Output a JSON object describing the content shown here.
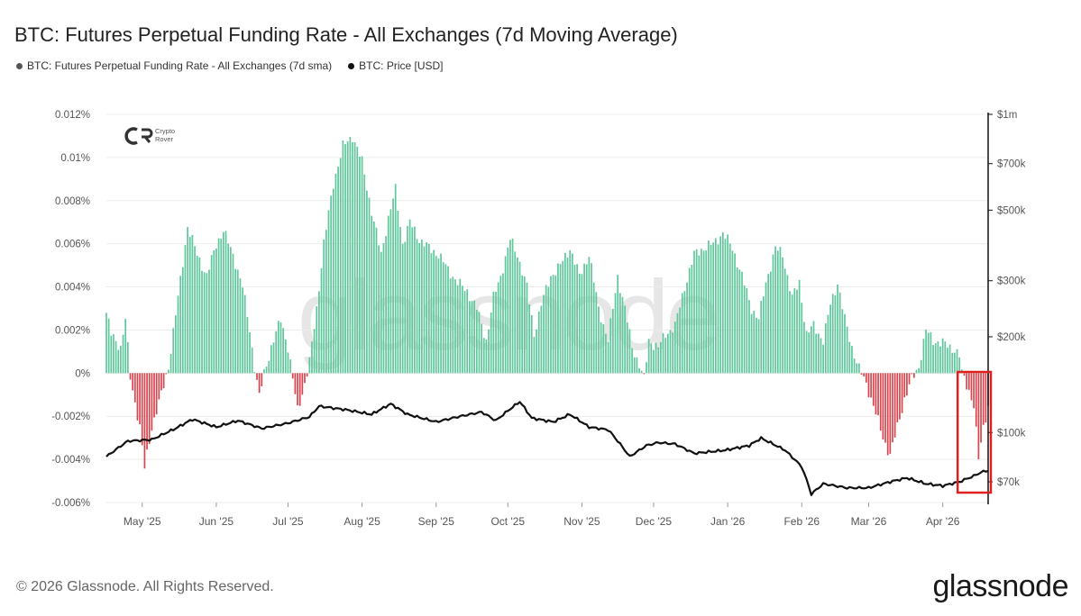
{
  "title": "BTC: Futures Perpetual Funding Rate - All Exchanges (7d Moving Average)",
  "legend": [
    {
      "label": "BTC: Futures Perpetual Funding Rate - All Exchanges (7d sma)",
      "color": "#555555"
    },
    {
      "label": "BTC: Price [USD]",
      "color": "#111111"
    }
  ],
  "footer": "© 2026 Glassnode. All Rights Reserved.",
  "brand": "glassnode",
  "watermark": "glassnode",
  "logo": {
    "line1": "Crypto",
    "line2": "Rover",
    "icon": "crypto-rover-logo-icon"
  },
  "colors": {
    "positive": "#5ec79b",
    "negative": "#d9454e",
    "price": "#111111",
    "highlight": "#e02020"
  },
  "chart_data": {
    "type": "bar",
    "left_axis": {
      "label": "",
      "ylim": [
        -0.006,
        0.012
      ],
      "ticks": [
        0.012,
        0.01,
        0.008,
        0.006,
        0.004,
        0.002,
        0,
        -0.002,
        -0.004,
        -0.006
      ],
      "tick_labels": [
        "0.012%",
        "0.01%",
        "0.008%",
        "0.006%",
        "0.004%",
        "0.002%",
        "0%",
        "-0.002%",
        "-0.004%",
        "-0.006%"
      ]
    },
    "right_axis": {
      "scale": "log",
      "ticks": [
        1000000,
        700000,
        500000,
        300000,
        200000,
        100000,
        70000
      ],
      "tick_labels": [
        "$1m",
        "$700k",
        "$500k",
        "$300k",
        "$200k",
        "$100k",
        "$70k"
      ]
    },
    "x_axis": {
      "start": "2025-04-16",
      "end": "2026-04-20",
      "tick_labels": [
        "May '25",
        "Jun '25",
        "Jul '25",
        "Aug '25",
        "Sep '25",
        "Oct '25",
        "Nov '25",
        "Dec '25",
        "Jan '26",
        "Feb '26",
        "Mar '26",
        "Apr '26"
      ],
      "tick_dates": [
        "2025-05-01",
        "2025-06-01",
        "2025-07-01",
        "2025-08-01",
        "2025-09-01",
        "2025-10-01",
        "2025-11-01",
        "2025-12-01",
        "2026-01-01",
        "2026-02-01",
        "2026-03-01",
        "2026-04-01"
      ]
    },
    "series": [
      {
        "name": "BTC: Futures Perpetual Funding Rate - All Exchanges (7d sma)",
        "axis": "left",
        "style": "bar",
        "keypoints": [
          [
            "2025-04-16",
            0.0028
          ],
          [
            "2025-04-18",
            0.0018
          ],
          [
            "2025-04-22",
            0.0012
          ],
          [
            "2025-04-24",
            0.0025
          ],
          [
            "2025-04-26",
            -0.0002
          ],
          [
            "2025-04-30",
            -0.0025
          ],
          [
            "2025-05-02",
            -0.0044
          ],
          [
            "2025-05-05",
            -0.0025
          ],
          [
            "2025-05-09",
            -0.001
          ],
          [
            "2025-05-12",
            0.0003
          ],
          [
            "2025-05-16",
            0.0035
          ],
          [
            "2025-05-20",
            0.0068
          ],
          [
            "2025-05-24",
            0.0055
          ],
          [
            "2025-05-28",
            0.0045
          ],
          [
            "2025-06-01",
            0.006
          ],
          [
            "2025-06-04",
            0.0066
          ],
          [
            "2025-06-08",
            0.0055
          ],
          [
            "2025-06-12",
            0.004
          ],
          [
            "2025-06-15",
            0.002
          ],
          [
            "2025-06-17",
            0.0003
          ],
          [
            "2025-06-19",
            -0.0011
          ],
          [
            "2025-06-21",
            0.0
          ],
          [
            "2025-06-24",
            0.0012
          ],
          [
            "2025-06-28",
            0.0025
          ],
          [
            "2025-07-01",
            0.0012
          ],
          [
            "2025-07-03",
            -0.0003
          ],
          [
            "2025-07-05",
            -0.0017
          ],
          [
            "2025-07-08",
            -0.0005
          ],
          [
            "2025-07-10",
            0.0005
          ],
          [
            "2025-07-13",
            0.003
          ],
          [
            "2025-07-16",
            0.006
          ],
          [
            "2025-07-20",
            0.0088
          ],
          [
            "2025-07-24",
            0.0105
          ],
          [
            "2025-07-28",
            0.011
          ],
          [
            "2025-08-01",
            0.0098
          ],
          [
            "2025-08-05",
            0.0075
          ],
          [
            "2025-08-09",
            0.0055
          ],
          [
            "2025-08-12",
            0.0072
          ],
          [
            "2025-08-15",
            0.0085
          ],
          [
            "2025-08-18",
            0.006
          ],
          [
            "2025-08-21",
            0.007
          ],
          [
            "2025-08-25",
            0.0062
          ],
          [
            "2025-08-29",
            0.0058
          ],
          [
            "2025-09-02",
            0.0055
          ],
          [
            "2025-09-06",
            0.0048
          ],
          [
            "2025-09-10",
            0.0042
          ],
          [
            "2025-09-14",
            0.0038
          ],
          [
            "2025-09-18",
            0.003
          ],
          [
            "2025-09-22",
            0.0015
          ],
          [
            "2025-09-25",
            0.0035
          ],
          [
            "2025-09-28",
            0.0045
          ],
          [
            "2025-10-02",
            0.0062
          ],
          [
            "2025-10-05",
            0.0055
          ],
          [
            "2025-10-09",
            0.004
          ],
          [
            "2025-10-12",
            0.0018
          ],
          [
            "2025-10-15",
            0.0032
          ],
          [
            "2025-10-19",
            0.0045
          ],
          [
            "2025-10-23",
            0.005
          ],
          [
            "2025-10-27",
            0.0058
          ],
          [
            "2025-10-31",
            0.0045
          ],
          [
            "2025-11-04",
            0.0055
          ],
          [
            "2025-11-08",
            0.003
          ],
          [
            "2025-11-12",
            0.0015
          ],
          [
            "2025-11-16",
            0.0045
          ],
          [
            "2025-11-19",
            0.003
          ],
          [
            "2025-11-22",
            0.0012
          ],
          [
            "2025-11-25",
            0.0004
          ],
          [
            "2025-11-27",
            -0.0003
          ],
          [
            "2025-11-29",
            0.0015
          ],
          [
            "2025-12-03",
            0.0012
          ],
          [
            "2025-12-06",
            0.0018
          ],
          [
            "2025-12-10",
            0.0022
          ],
          [
            "2025-12-14",
            0.004
          ],
          [
            "2025-12-18",
            0.0055
          ],
          [
            "2025-12-22",
            0.0058
          ],
          [
            "2025-12-26",
            0.006
          ],
          [
            "2025-12-30",
            0.0065
          ],
          [
            "2026-01-03",
            0.0058
          ],
          [
            "2026-01-07",
            0.0045
          ],
          [
            "2026-01-11",
            0.003
          ],
          [
            "2026-01-14",
            0.0025
          ],
          [
            "2026-01-17",
            0.0042
          ],
          [
            "2026-01-21",
            0.0058
          ],
          [
            "2026-01-24",
            0.0055
          ],
          [
            "2026-01-28",
            0.0035
          ],
          [
            "2026-01-31",
            0.0042
          ],
          [
            "2026-02-03",
            0.0018
          ],
          [
            "2026-02-06",
            0.0022
          ],
          [
            "2026-02-10",
            0.0015
          ],
          [
            "2026-02-13",
            0.0032
          ],
          [
            "2026-02-16",
            0.0042
          ],
          [
            "2026-02-19",
            0.0025
          ],
          [
            "2026-02-22",
            0.0012
          ],
          [
            "2026-02-25",
            0.0002
          ],
          [
            "2026-02-28",
            -0.0005
          ],
          [
            "2026-03-03",
            -0.0015
          ],
          [
            "2026-03-07",
            -0.003
          ],
          [
            "2026-03-10",
            -0.0038
          ],
          [
            "2026-03-13",
            -0.0025
          ],
          [
            "2026-03-16",
            -0.0012
          ],
          [
            "2026-03-19",
            -0.0003
          ],
          [
            "2026-03-22",
            0.0003
          ],
          [
            "2026-03-25",
            0.002
          ],
          [
            "2026-03-28",
            0.0015
          ],
          [
            "2026-04-01",
            0.0014
          ],
          [
            "2026-04-04",
            0.0012
          ],
          [
            "2026-04-06",
            0.0011
          ],
          [
            "2026-04-08",
            0.0008
          ],
          [
            "2026-04-09",
            0.0
          ],
          [
            "2026-04-12",
            -0.0008
          ],
          [
            "2026-04-14",
            -0.0015
          ],
          [
            "2026-04-16",
            -0.004
          ],
          [
            "2026-04-18",
            -0.0025
          ],
          [
            "2026-04-20",
            -0.0015
          ]
        ]
      },
      {
        "name": "BTC: Price [USD]",
        "axis": "right",
        "style": "line",
        "keypoints": [
          [
            "2025-04-16",
            84000
          ],
          [
            "2025-04-25",
            94000
          ],
          [
            "2025-05-05",
            95000
          ],
          [
            "2025-05-15",
            103000
          ],
          [
            "2025-05-22",
            110000
          ],
          [
            "2025-06-01",
            104000
          ],
          [
            "2025-06-10",
            109000
          ],
          [
            "2025-06-20",
            103000
          ],
          [
            "2025-07-01",
            107000
          ],
          [
            "2025-07-10",
            112000
          ],
          [
            "2025-07-14",
            121000
          ],
          [
            "2025-07-25",
            118000
          ],
          [
            "2025-08-05",
            114000
          ],
          [
            "2025-08-13",
            123000
          ],
          [
            "2025-08-20",
            114000
          ],
          [
            "2025-09-01",
            108000
          ],
          [
            "2025-09-10",
            112000
          ],
          [
            "2025-09-20",
            116000
          ],
          [
            "2025-09-26",
            109000
          ],
          [
            "2025-10-06",
            125000
          ],
          [
            "2025-10-11",
            111000
          ],
          [
            "2025-10-20",
            108000
          ],
          [
            "2025-10-27",
            114000
          ],
          [
            "2025-11-04",
            104000
          ],
          [
            "2025-11-12",
            102000
          ],
          [
            "2025-11-21",
            84000
          ],
          [
            "2025-11-28",
            91000
          ],
          [
            "2025-12-03",
            93000
          ],
          [
            "2025-12-10",
            92000
          ],
          [
            "2025-12-18",
            86000
          ],
          [
            "2025-12-31",
            88000
          ],
          [
            "2026-01-10",
            91000
          ],
          [
            "2026-01-15",
            96000
          ],
          [
            "2026-01-25",
            88000
          ],
          [
            "2026-02-01",
            78000
          ],
          [
            "2026-02-05",
            64000
          ],
          [
            "2026-02-10",
            69000
          ],
          [
            "2026-02-20",
            67000
          ],
          [
            "2026-03-01",
            67000
          ],
          [
            "2026-03-10",
            70000
          ],
          [
            "2026-03-17",
            72000
          ],
          [
            "2026-03-25",
            69000
          ],
          [
            "2026-04-01",
            68000
          ],
          [
            "2026-04-08",
            70000
          ],
          [
            "2026-04-14",
            73000
          ],
          [
            "2026-04-17",
            75000
          ],
          [
            "2026-04-20",
            76000
          ]
        ]
      }
    ],
    "highlight_box": {
      "start": "2026-04-08",
      "end": "2026-04-20",
      "note": "red rectangle around latest negative funding"
    }
  }
}
